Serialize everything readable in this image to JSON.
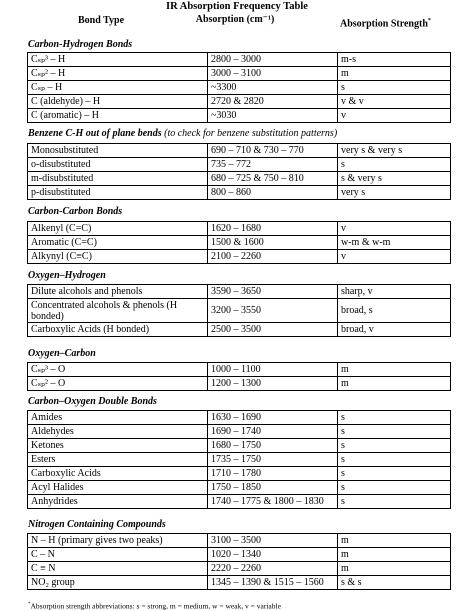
{
  "title": "IR Absorption Frequency Table",
  "headers": {
    "bond_type": "Bond Type",
    "absorption": "Absorption (cm⁻¹)",
    "strength": "Absorption Strength",
    "strength_marker": "*"
  },
  "sections": [
    {
      "title": "Carbon-Hydrogen Bonds",
      "rows": [
        [
          "Cₛₚ³ – H",
          "2800 – 3000",
          "m-s"
        ],
        [
          "Cₛₚ² – H",
          "3000 – 3100",
          "m"
        ],
        [
          "Cₛₚ – H",
          "~3300",
          "s"
        ],
        [
          "C (aldehyde) – H",
          "2720  &  2820",
          "v & v"
        ],
        [
          "C (aromatic) – H",
          "~3030",
          "v"
        ]
      ]
    },
    {
      "title": "Benzene C-H out of plane bends",
      "note": "(to check for benzene substitution patterns)",
      "rows": [
        [
          "Monosubstituted",
          "690 – 710  &  730 – 770",
          "very s & very s"
        ],
        [
          "o-disubstituted",
          "735 – 772",
          "s"
        ],
        [
          "m-disubstituted",
          "680 – 725  &  750 – 810",
          "s & very s"
        ],
        [
          "p-disubstituted",
          "800 – 860",
          "very s"
        ]
      ]
    },
    {
      "title": "Carbon-Carbon Bonds",
      "rows": [
        [
          "Alkenyl (C=C)",
          "1620 – 1680",
          "v"
        ],
        [
          "Aromatic (C=C)",
          "1500  &  1600",
          "w-m  &  w-m"
        ],
        [
          "Alkynyl (C≡C)",
          "2100 – 2260",
          "v"
        ]
      ]
    },
    {
      "title": "Oxygen–Hydrogen",
      "rows": [
        [
          "Dilute alcohols and phenols",
          "3590 – 3650",
          "sharp, v"
        ],
        [
          "Concentrated alcohols & phenols (H bonded)",
          "3200 – 3550",
          "broad, s"
        ],
        [
          "Carboxylic Acids (H bonded)",
          "2500 – 3500",
          "broad, v"
        ]
      ]
    },
    {
      "title": "Oxygen–Carbon",
      "rows": [
        [
          "Cₛₚ³ – O",
          "1000 – 1100",
          "m"
        ],
        [
          "Cₛₚ² – O",
          "1200 – 1300",
          "m"
        ]
      ]
    },
    {
      "title": "Carbon–Oxygen Double Bonds",
      "rows": [
        [
          "Amides",
          "1630 – 1690",
          "s"
        ],
        [
          "Aldehydes",
          "1690 – 1740",
          "s"
        ],
        [
          "Ketones",
          "1680 – 1750",
          "s"
        ],
        [
          "Esters",
          "1735 – 1750",
          "s"
        ],
        [
          "Carboxylic Acids",
          "1710 – 1780",
          "s"
        ],
        [
          "Acyl Halides",
          "1750 – 1850",
          "s"
        ],
        [
          "Anhydrides",
          "1740 – 1775  &  1800 – 1830",
          "s"
        ]
      ]
    },
    {
      "title": "Nitrogen Containing Compounds",
      "rows": [
        [
          "N – H (primary gives two peaks)",
          "3100 – 3500",
          "m"
        ],
        [
          "C – N",
          "1020 – 1340",
          "m"
        ],
        [
          "C ≡ N",
          "2220 – 2260",
          "m"
        ],
        [
          "NO₂ group",
          "1345 – 1390  &  1515 – 1560",
          "s  &  s"
        ]
      ]
    }
  ],
  "footnote": {
    "marker": "*",
    "text": "Absorption strength abbreviations: s = strong, m = medium, w = weak, v = variable"
  }
}
